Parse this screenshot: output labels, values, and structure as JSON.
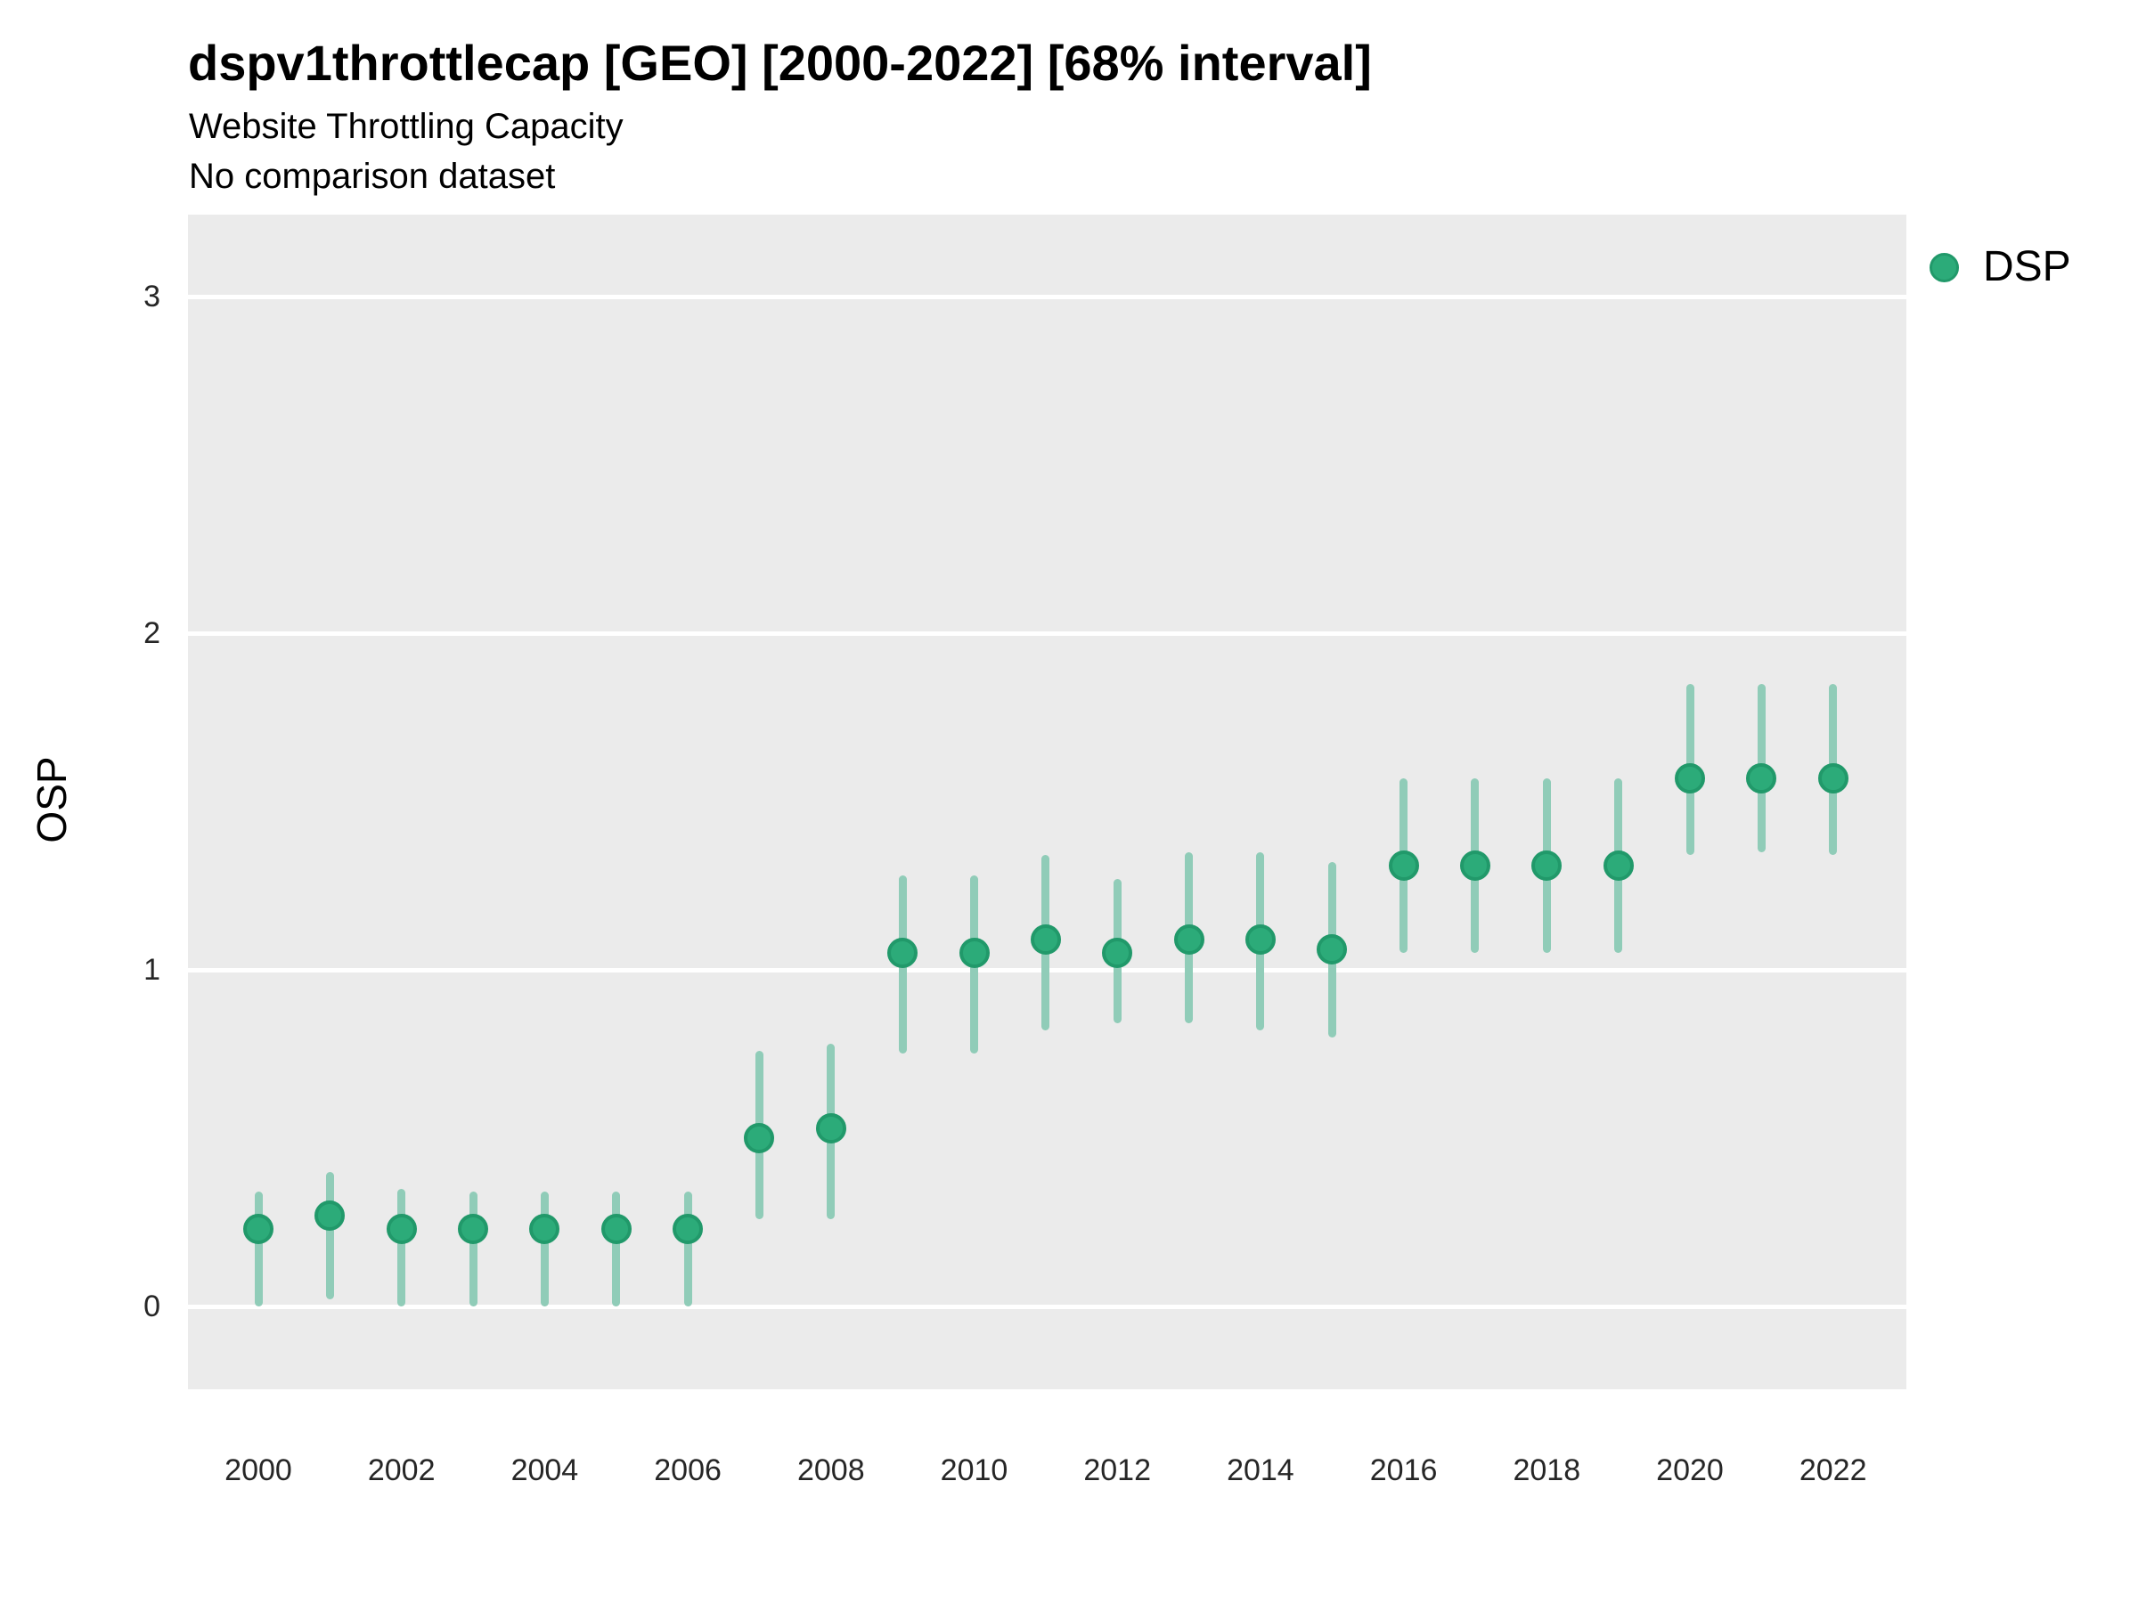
{
  "header": {
    "title": "dspv1throttlecap [GEO] [2000-2022] [68% interval]",
    "subtitle": "Website Throttling Capacity",
    "note": "No comparison dataset"
  },
  "legend": {
    "position": "top-right",
    "items": [
      {
        "label": "DSP",
        "swatch": "circle",
        "color": "#2cab79"
      }
    ]
  },
  "colors": {
    "panel_background": "#ebebeb",
    "gridline": "#ffffff",
    "marker_fill": "#2cab79",
    "marker_stroke": "#21996a",
    "interval_bar": "#90ccb8",
    "text": "#000000",
    "tick_text": "#262626"
  },
  "chart_data": {
    "type": "scatter",
    "title": "dspv1throttlecap [GEO] [2000-2022] [68% interval]",
    "subtitle": "Website Throttling Capacity",
    "note": "No comparison dataset",
    "xlabel": "",
    "ylabel": "OSP",
    "interval": "68%",
    "grid": "horizontal-major-only",
    "legend_position": "top-right",
    "ylim": [
      -0.25,
      3.25
    ],
    "xlim": [
      1999,
      2023
    ],
    "y_ticks": [
      0,
      1,
      2,
      3
    ],
    "x_ticks": [
      2000,
      2002,
      2004,
      2006,
      2008,
      2010,
      2012,
      2014,
      2016,
      2018,
      2020,
      2022
    ],
    "series": [
      {
        "name": "DSP",
        "points": [
          {
            "year": 2000,
            "value": 0.23,
            "lo": 0.0,
            "hi": 0.34
          },
          {
            "year": 2001,
            "value": 0.27,
            "lo": 0.02,
            "hi": 0.4
          },
          {
            "year": 2002,
            "value": 0.23,
            "lo": 0.0,
            "hi": 0.35
          },
          {
            "year": 2003,
            "value": 0.23,
            "lo": 0.0,
            "hi": 0.34
          },
          {
            "year": 2004,
            "value": 0.23,
            "lo": 0.0,
            "hi": 0.34
          },
          {
            "year": 2005,
            "value": 0.23,
            "lo": 0.0,
            "hi": 0.34
          },
          {
            "year": 2006,
            "value": 0.23,
            "lo": 0.0,
            "hi": 0.34
          },
          {
            "year": 2007,
            "value": 0.5,
            "lo": 0.26,
            "hi": 0.76
          },
          {
            "year": 2008,
            "value": 0.53,
            "lo": 0.26,
            "hi": 0.78
          },
          {
            "year": 2009,
            "value": 1.05,
            "lo": 0.75,
            "hi": 1.28
          },
          {
            "year": 2010,
            "value": 1.05,
            "lo": 0.75,
            "hi": 1.28
          },
          {
            "year": 2011,
            "value": 1.09,
            "lo": 0.82,
            "hi": 1.34
          },
          {
            "year": 2012,
            "value": 1.05,
            "lo": 0.84,
            "hi": 1.27
          },
          {
            "year": 2013,
            "value": 1.09,
            "lo": 0.84,
            "hi": 1.35
          },
          {
            "year": 2014,
            "value": 1.09,
            "lo": 0.82,
            "hi": 1.35
          },
          {
            "year": 2015,
            "value": 1.06,
            "lo": 0.8,
            "hi": 1.32
          },
          {
            "year": 2016,
            "value": 1.31,
            "lo": 1.05,
            "hi": 1.57
          },
          {
            "year": 2017,
            "value": 1.31,
            "lo": 1.05,
            "hi": 1.57
          },
          {
            "year": 2018,
            "value": 1.31,
            "lo": 1.05,
            "hi": 1.57
          },
          {
            "year": 2019,
            "value": 1.31,
            "lo": 1.05,
            "hi": 1.57
          },
          {
            "year": 2020,
            "value": 1.57,
            "lo": 1.34,
            "hi": 1.85
          },
          {
            "year": 2021,
            "value": 1.57,
            "lo": 1.35,
            "hi": 1.85
          },
          {
            "year": 2022,
            "value": 1.57,
            "lo": 1.34,
            "hi": 1.85
          }
        ]
      }
    ]
  }
}
